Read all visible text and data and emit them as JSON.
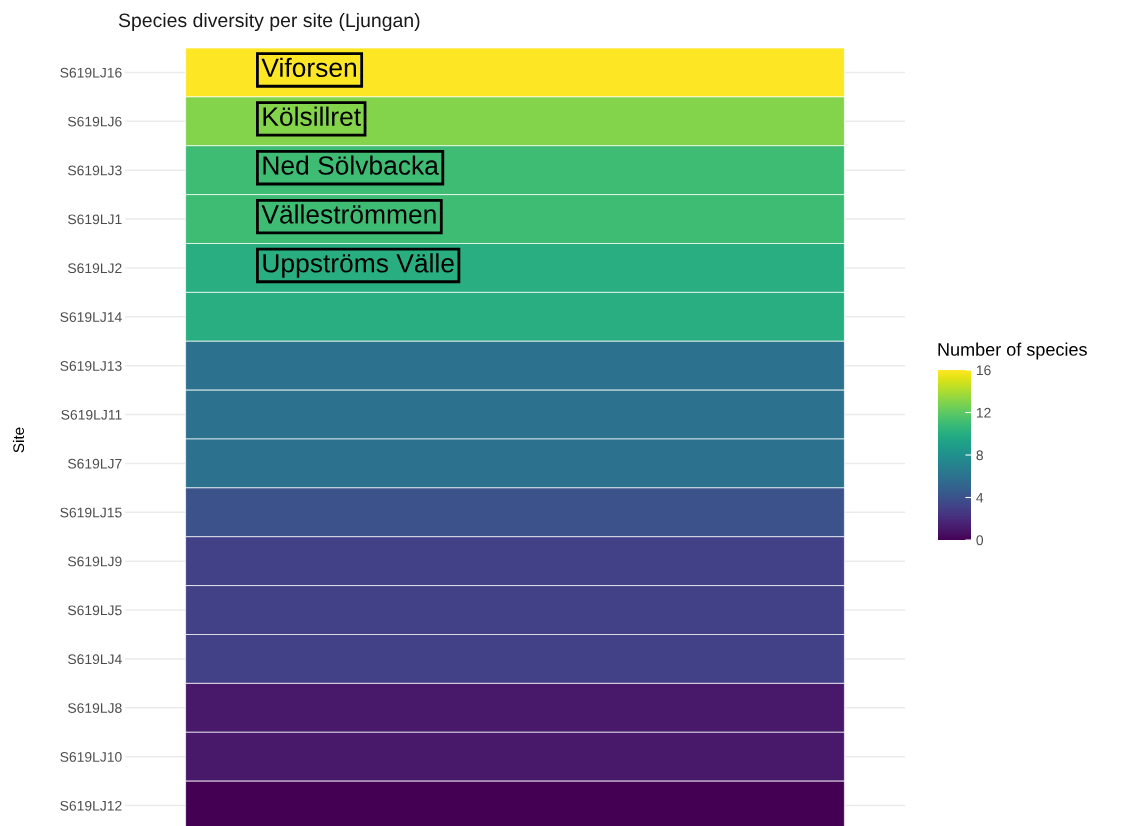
{
  "chart_data": {
    "type": "heatmap",
    "title": "Species diversity per site (Ljungan)",
    "ylabel": "Site",
    "clabel": "Number of species",
    "categories": [
      null
    ],
    "y_categories": [
      "S619LJ16",
      "S619LJ6",
      "S619LJ3",
      "S619LJ1",
      "S619LJ2",
      "S619LJ14",
      "S619LJ13",
      "S619LJ11",
      "S619LJ7",
      "S619LJ15",
      "S619LJ9",
      "S619LJ5",
      "S619LJ4",
      "S619LJ8",
      "S619LJ10",
      "S619LJ12"
    ],
    "cells": [
      [
        16
      ],
      [
        13
      ],
      [
        11
      ],
      [
        11
      ],
      [
        10
      ],
      [
        10
      ],
      [
        6
      ],
      [
        6
      ],
      [
        6
      ],
      [
        4
      ],
      [
        3
      ],
      [
        3
      ],
      [
        3
      ],
      [
        1
      ],
      [
        1
      ],
      [
        0
      ]
    ],
    "clim": [
      0,
      16
    ],
    "cticks": [
      0,
      4,
      8,
      12,
      16
    ],
    "grid": "y",
    "annotations": [
      "Viforsen",
      "Kölsillret",
      "Ned Sölvbacka",
      "Välleströmmen",
      "Uppströms Välle"
    ]
  }
}
